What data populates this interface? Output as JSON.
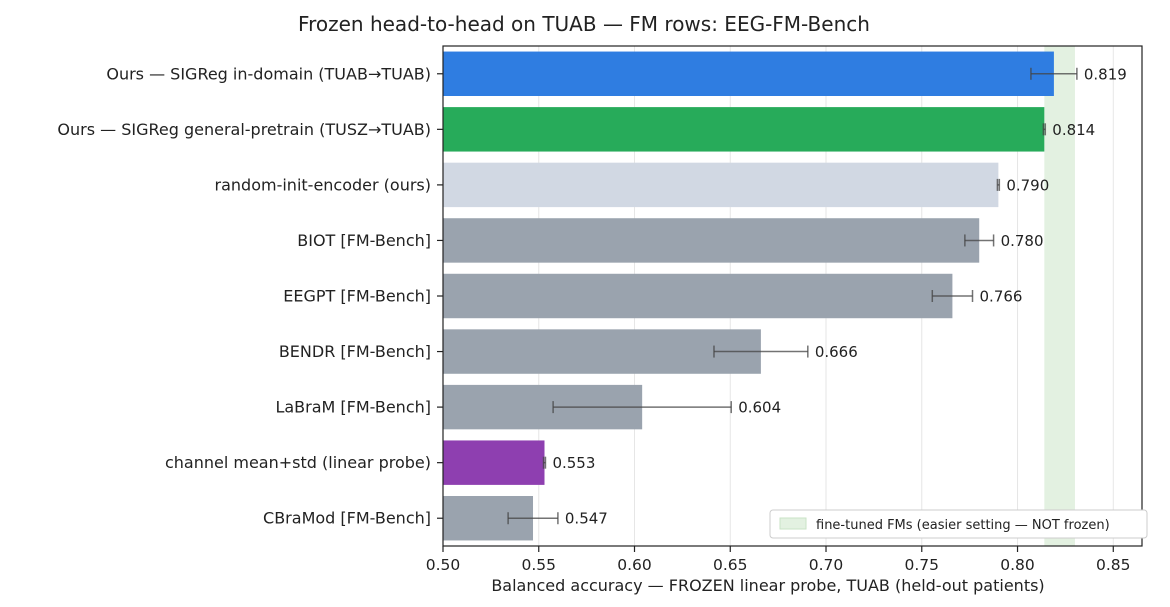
{
  "chart_data": {
    "type": "bar",
    "orientation": "horizontal",
    "title": "Frozen head-to-head on TUAB — FM rows: EEG-FM-Bench",
    "xlabel": "Balanced accuracy — FROZEN linear probe, TUAB (held-out patients)",
    "ylabel": "",
    "xlim": [
      0.5,
      0.865
    ],
    "xticks": [
      0.5,
      0.55,
      0.6,
      0.65,
      0.7,
      0.75,
      0.8,
      0.85
    ],
    "xtick_labels": [
      "0.50",
      "0.55",
      "0.60",
      "0.65",
      "0.70",
      "0.75",
      "0.80",
      "0.85"
    ],
    "grid": "vertical, light",
    "bars": [
      {
        "label": "Ours — SIGReg in-domain (TUAB→TUAB)",
        "value": 0.819,
        "value_label": "0.819",
        "err": 0.012,
        "color": "#2f7de1"
      },
      {
        "label": "Ours — SIGReg general-pretrain (TUSZ→TUAB)",
        "value": 0.814,
        "value_label": "0.814",
        "err": 0.0005,
        "color": "#27ab5a"
      },
      {
        "label": "random-init-encoder (ours)",
        "value": 0.79,
        "value_label": "0.790",
        "err": 0.0005,
        "color": "#d1d8e3"
      },
      {
        "label": "BIOT  [FM-Bench]",
        "value": 0.78,
        "value_label": "0.780",
        "err": 0.0075,
        "color": "#9aa3ae"
      },
      {
        "label": "EEGPT  [FM-Bench]",
        "value": 0.766,
        "value_label": "0.766",
        "err": 0.0105,
        "color": "#9aa3ae"
      },
      {
        "label": "BENDR  [FM-Bench]",
        "value": 0.666,
        "value_label": "0.666",
        "err": 0.0245,
        "color": "#9aa3ae"
      },
      {
        "label": "LaBraM  [FM-Bench]",
        "value": 0.604,
        "value_label": "0.604",
        "err": 0.0465,
        "color": "#9aa3ae"
      },
      {
        "label": "channel mean+std (linear probe)",
        "value": 0.553,
        "value_label": "0.553",
        "err": 0.0005,
        "color": "#8e3fb0"
      },
      {
        "label": "CBraMod  [FM-Bench]",
        "value": 0.547,
        "value_label": "0.547",
        "err": 0.013,
        "color": "#9aa3ae"
      }
    ],
    "shaded_band": {
      "from": 0.814,
      "to": 0.83,
      "color": "#e3f1e1"
    },
    "legend": {
      "text": "fine-tuned FMs (easier setting — NOT frozen)",
      "placement": "bottom-right"
    }
  }
}
